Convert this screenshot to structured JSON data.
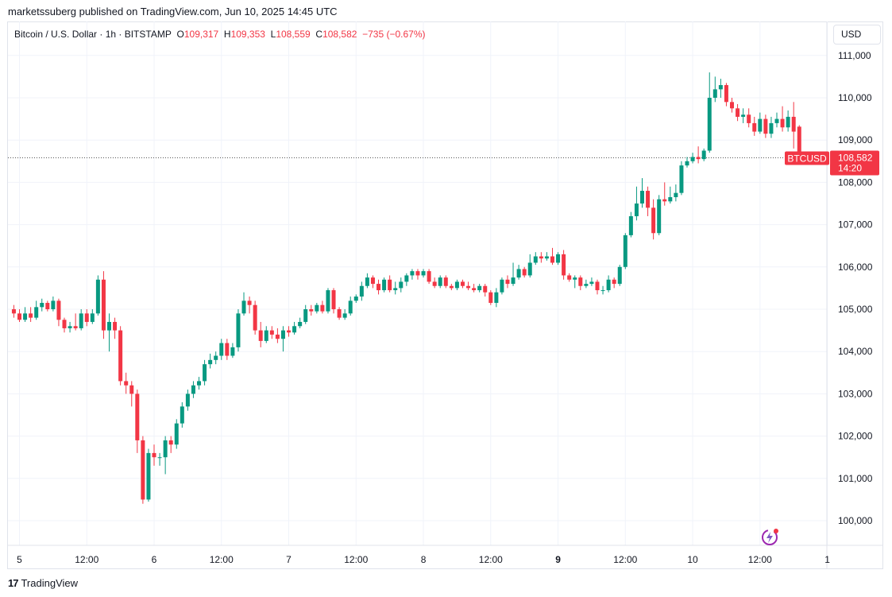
{
  "publisher": "marketssuberg published on TradingView.com, Jun 10, 2025 14:45 UTC",
  "symbol": {
    "name": "Bitcoin / U.S. Dollar · 1h · BITSTAMP",
    "o_label": "O",
    "o_value": "109,317",
    "h_label": "H",
    "h_value": "109,353",
    "l_label": "L",
    "l_value": "108,559",
    "c_label": "C",
    "c_value": "108,582",
    "change": "−735 (−0.67%)"
  },
  "currency_button": "USD",
  "last_price": {
    "ticker": "BTCUSD",
    "price": "108,582",
    "countdown": "14:20"
  },
  "footer": {
    "logo_mark": "17",
    "brand": "TradingView"
  },
  "icons": {
    "spark": "lightning-spark-icon",
    "logo": "tradingview-logo-icon"
  },
  "colors": {
    "up": "#089981",
    "down": "#f23645",
    "grid": "#f0f3fa",
    "text": "#131722"
  },
  "chart_data": {
    "type": "candlestick",
    "ylim": [
      99500,
      111300
    ],
    "y_ticks": [
      100000,
      101000,
      102000,
      103000,
      104000,
      105000,
      106000,
      107000,
      108000,
      109000,
      110000,
      111000
    ],
    "y_tick_labels": [
      "100,000",
      "101,000",
      "102,000",
      "103,000",
      "104,000",
      "105,000",
      "106,000",
      "107,000",
      "108,000",
      "109,000",
      "110,000",
      "111,000"
    ],
    "x_tick_labels": [
      {
        "label": "5",
        "hour": 0,
        "bold": false
      },
      {
        "label": "12:00",
        "hour": 12,
        "bold": false
      },
      {
        "label": "6",
        "hour": 24,
        "bold": false
      },
      {
        "label": "12:00",
        "hour": 36,
        "bold": false
      },
      {
        "label": "7",
        "hour": 48,
        "bold": false
      },
      {
        "label": "12:00",
        "hour": 60,
        "bold": false
      },
      {
        "label": "8",
        "hour": 72,
        "bold": false
      },
      {
        "label": "12:00",
        "hour": 84,
        "bold": false
      },
      {
        "label": "9",
        "hour": 96,
        "bold": true
      },
      {
        "label": "12:00",
        "hour": 108,
        "bold": false
      },
      {
        "label": "10",
        "hour": 120,
        "bold": false
      },
      {
        "label": "12:00",
        "hour": 132,
        "bold": false
      },
      {
        "label": "1",
        "hour": 144,
        "bold": false
      }
    ],
    "last_price": 108582,
    "candles": [
      [
        -1,
        105000,
        104900,
        105100,
        104800
      ],
      [
        0,
        104900,
        104750,
        105000,
        104700
      ],
      [
        1,
        104750,
        104900,
        105050,
        104700
      ],
      [
        2,
        104900,
        104800,
        105050,
        104700
      ],
      [
        3,
        104800,
        105050,
        105200,
        104750
      ],
      [
        4,
        105050,
        105150,
        105250,
        104950
      ],
      [
        5,
        105150,
        105000,
        105200,
        104950
      ],
      [
        6,
        105000,
        105200,
        105300,
        104950
      ],
      [
        7,
        105200,
        104750,
        105250,
        104600
      ],
      [
        8,
        104750,
        104550,
        104800,
        104450
      ],
      [
        9,
        104550,
        104600,
        104700,
        104450
      ],
      [
        10,
        104600,
        104550,
        104900,
        104500
      ],
      [
        11,
        104550,
        104900,
        105000,
        104500
      ],
      [
        12,
        104900,
        104700,
        105000,
        104600
      ],
      [
        13,
        104700,
        104900,
        105000,
        104650
      ],
      [
        14,
        104900,
        105700,
        105800,
        104850
      ],
      [
        15,
        105700,
        104500,
        105900,
        104300
      ],
      [
        16,
        104500,
        104700,
        104900,
        104000
      ],
      [
        17,
        104700,
        104500,
        104800,
        104300
      ],
      [
        18,
        104500,
        103300,
        104600,
        103200
      ],
      [
        19,
        103300,
        103200,
        103500,
        103000
      ],
      [
        20,
        103200,
        103000,
        103300,
        102700
      ],
      [
        21,
        103000,
        101900,
        103100,
        101600
      ],
      [
        22,
        101900,
        100500,
        102000,
        100400
      ],
      [
        23,
        100500,
        101600,
        101700,
        100450
      ],
      [
        24,
        101600,
        101500,
        101800,
        101300
      ],
      [
        25,
        101500,
        101500,
        101600,
        101300
      ],
      [
        26,
        101500,
        101900,
        102000,
        101100
      ],
      [
        27,
        101900,
        101800,
        102000,
        101600
      ],
      [
        28,
        101800,
        102300,
        102400,
        101700
      ],
      [
        29,
        102300,
        102700,
        102800,
        102200
      ],
      [
        30,
        102700,
        103000,
        103100,
        102600
      ],
      [
        31,
        103000,
        103200,
        103300,
        102900
      ],
      [
        32,
        103200,
        103300,
        103400,
        103100
      ],
      [
        33,
        103300,
        103700,
        103800,
        103200
      ],
      [
        34,
        103700,
        103800,
        103950,
        103600
      ],
      [
        35,
        103800,
        103900,
        104000,
        103700
      ],
      [
        36,
        103900,
        104200,
        104300,
        103800
      ],
      [
        37,
        104200,
        103900,
        104300,
        103800
      ],
      [
        38,
        103900,
        104100,
        104200,
        103850
      ],
      [
        39,
        104100,
        104900,
        105000,
        104000
      ],
      [
        40,
        104900,
        105200,
        105400,
        104850
      ],
      [
        41,
        105200,
        105100,
        105300,
        104900
      ],
      [
        42,
        105100,
        104500,
        105200,
        104400
      ],
      [
        43,
        104500,
        104250,
        104700,
        104100
      ],
      [
        44,
        104250,
        104500,
        104600,
        104200
      ],
      [
        45,
        104500,
        104400,
        104600,
        104300
      ],
      [
        46,
        104400,
        104300,
        104550,
        104200
      ],
      [
        47,
        104300,
        104500,
        104600,
        104000
      ],
      [
        48,
        104500,
        104450,
        104600,
        104350
      ],
      [
        49,
        104450,
        104600,
        104700,
        104400
      ],
      [
        50,
        104600,
        104700,
        104800,
        104550
      ],
      [
        51,
        104700,
        105000,
        105100,
        104650
      ],
      [
        52,
        105000,
        104950,
        105100,
        104850
      ],
      [
        53,
        104950,
        105100,
        105150,
        104900
      ],
      [
        54,
        105100,
        104950,
        105200,
        104900
      ],
      [
        55,
        104950,
        105450,
        105500,
        104900
      ],
      [
        56,
        105450,
        105000,
        105500,
        104900
      ],
      [
        57,
        105000,
        104800,
        105050,
        104750
      ],
      [
        58,
        104800,
        104900,
        105000,
        104750
      ],
      [
        59,
        104900,
        105200,
        105300,
        104850
      ],
      [
        60,
        105200,
        105300,
        105350,
        105150
      ],
      [
        61,
        105300,
        105550,
        105650,
        105200
      ],
      [
        62,
        105550,
        105750,
        105850,
        105500
      ],
      [
        63,
        105750,
        105600,
        105800,
        105500
      ],
      [
        64,
        105600,
        105450,
        105700,
        105350
      ],
      [
        65,
        105450,
        105700,
        105750,
        105400
      ],
      [
        66,
        105700,
        105450,
        105800,
        105400
      ],
      [
        67,
        105450,
        105500,
        105650,
        105350
      ],
      [
        68,
        105500,
        105650,
        105750,
        105400
      ],
      [
        69,
        105650,
        105800,
        105850,
        105550
      ],
      [
        70,
        105800,
        105900,
        105950,
        105700
      ],
      [
        71,
        105900,
        105800,
        105950,
        105700
      ],
      [
        72,
        105800,
        105900,
        105950,
        105750
      ],
      [
        73,
        105900,
        105650,
        105950,
        105600
      ],
      [
        74,
        105650,
        105550,
        105750,
        105500
      ],
      [
        75,
        105550,
        105750,
        105800,
        105500
      ],
      [
        76,
        105750,
        105550,
        105800,
        105500
      ],
      [
        77,
        105550,
        105500,
        105600,
        105450
      ],
      [
        78,
        105500,
        105650,
        105700,
        105450
      ],
      [
        79,
        105650,
        105550,
        105700,
        105500
      ],
      [
        80,
        105550,
        105500,
        105650,
        105450
      ],
      [
        81,
        105500,
        105450,
        105600,
        105400
      ],
      [
        82,
        105450,
        105550,
        105600,
        105400
      ],
      [
        83,
        105550,
        105400,
        105600,
        105300
      ],
      [
        84,
        105400,
        105150,
        105450,
        105100
      ],
      [
        85,
        105150,
        105400,
        105500,
        105050
      ],
      [
        86,
        105400,
        105700,
        105750,
        105350
      ],
      [
        87,
        105700,
        105600,
        105800,
        105500
      ],
      [
        88,
        105600,
        105750,
        106100,
        105550
      ],
      [
        89,
        105750,
        105950,
        106050,
        105700
      ],
      [
        90,
        105950,
        105800,
        106000,
        105750
      ],
      [
        91,
        105800,
        106100,
        106300,
        105750
      ],
      [
        92,
        106100,
        106250,
        106350,
        106050
      ],
      [
        93,
        106250,
        106200,
        106350,
        106100
      ],
      [
        94,
        106200,
        106250,
        106350,
        106150
      ],
      [
        95,
        106250,
        106100,
        106450,
        106050
      ],
      [
        96,
        106100,
        106300,
        106350,
        106050
      ],
      [
        97,
        106300,
        105800,
        106400,
        105700
      ],
      [
        98,
        105800,
        105700,
        105850,
        105650
      ],
      [
        99,
        105700,
        105750,
        105800,
        105500
      ],
      [
        100,
        105750,
        105550,
        105800,
        105450
      ],
      [
        101,
        105550,
        105600,
        105700,
        105500
      ],
      [
        102,
        105600,
        105650,
        105750,
        105550
      ],
      [
        103,
        105650,
        105450,
        105700,
        105350
      ],
      [
        104,
        105450,
        105450,
        105550,
        105350
      ],
      [
        105,
        105450,
        105700,
        105800,
        105400
      ],
      [
        106,
        105700,
        105600,
        105750,
        105500
      ],
      [
        107,
        105600,
        106000,
        106050,
        105550
      ],
      [
        108,
        106000,
        106750,
        106800,
        105950
      ],
      [
        109,
        106750,
        107200,
        107300,
        106700
      ],
      [
        110,
        107200,
        107500,
        107900,
        107100
      ],
      [
        111,
        107500,
        107800,
        108100,
        107400
      ],
      [
        112,
        107800,
        107400,
        107900,
        107200
      ],
      [
        113,
        107400,
        106800,
        107600,
        106650
      ],
      [
        114,
        106800,
        107600,
        107700,
        106750
      ],
      [
        115,
        107600,
        107550,
        108000,
        107450
      ],
      [
        116,
        107550,
        107650,
        107900,
        107500
      ],
      [
        117,
        107650,
        107750,
        107950,
        107550
      ],
      [
        118,
        107750,
        108400,
        108500,
        107700
      ],
      [
        119,
        108400,
        108500,
        108600,
        108350
      ],
      [
        120,
        108500,
        108600,
        108700,
        108450
      ],
      [
        121,
        108600,
        108550,
        108850,
        108450
      ],
      [
        122,
        108550,
        108750,
        108800,
        108500
      ],
      [
        123,
        108750,
        110000,
        110600,
        108700
      ],
      [
        124,
        110000,
        110200,
        110500,
        109900
      ],
      [
        125,
        110200,
        110300,
        110450,
        110000
      ],
      [
        126,
        110300,
        109900,
        110350,
        109800
      ],
      [
        127,
        109900,
        109750,
        110000,
        109650
      ],
      [
        128,
        109750,
        109550,
        109850,
        109450
      ],
      [
        129,
        109550,
        109600,
        109750,
        109400
      ],
      [
        130,
        109600,
        109400,
        109750,
        109300
      ],
      [
        131,
        109400,
        109200,
        109550,
        109100
      ],
      [
        132,
        109200,
        109500,
        109650,
        109150
      ],
      [
        133,
        109500,
        109150,
        109600,
        109050
      ],
      [
        134,
        109150,
        109400,
        109550,
        109050
      ],
      [
        135,
        109400,
        109500,
        109650,
        109300
      ],
      [
        136,
        109500,
        109300,
        109800,
        109200
      ],
      [
        137,
        109300,
        109550,
        109700,
        109200
      ],
      [
        138,
        109550,
        109200,
        109900,
        108800
      ],
      [
        139,
        109317,
        108582,
        109353,
        108559
      ]
    ]
  }
}
